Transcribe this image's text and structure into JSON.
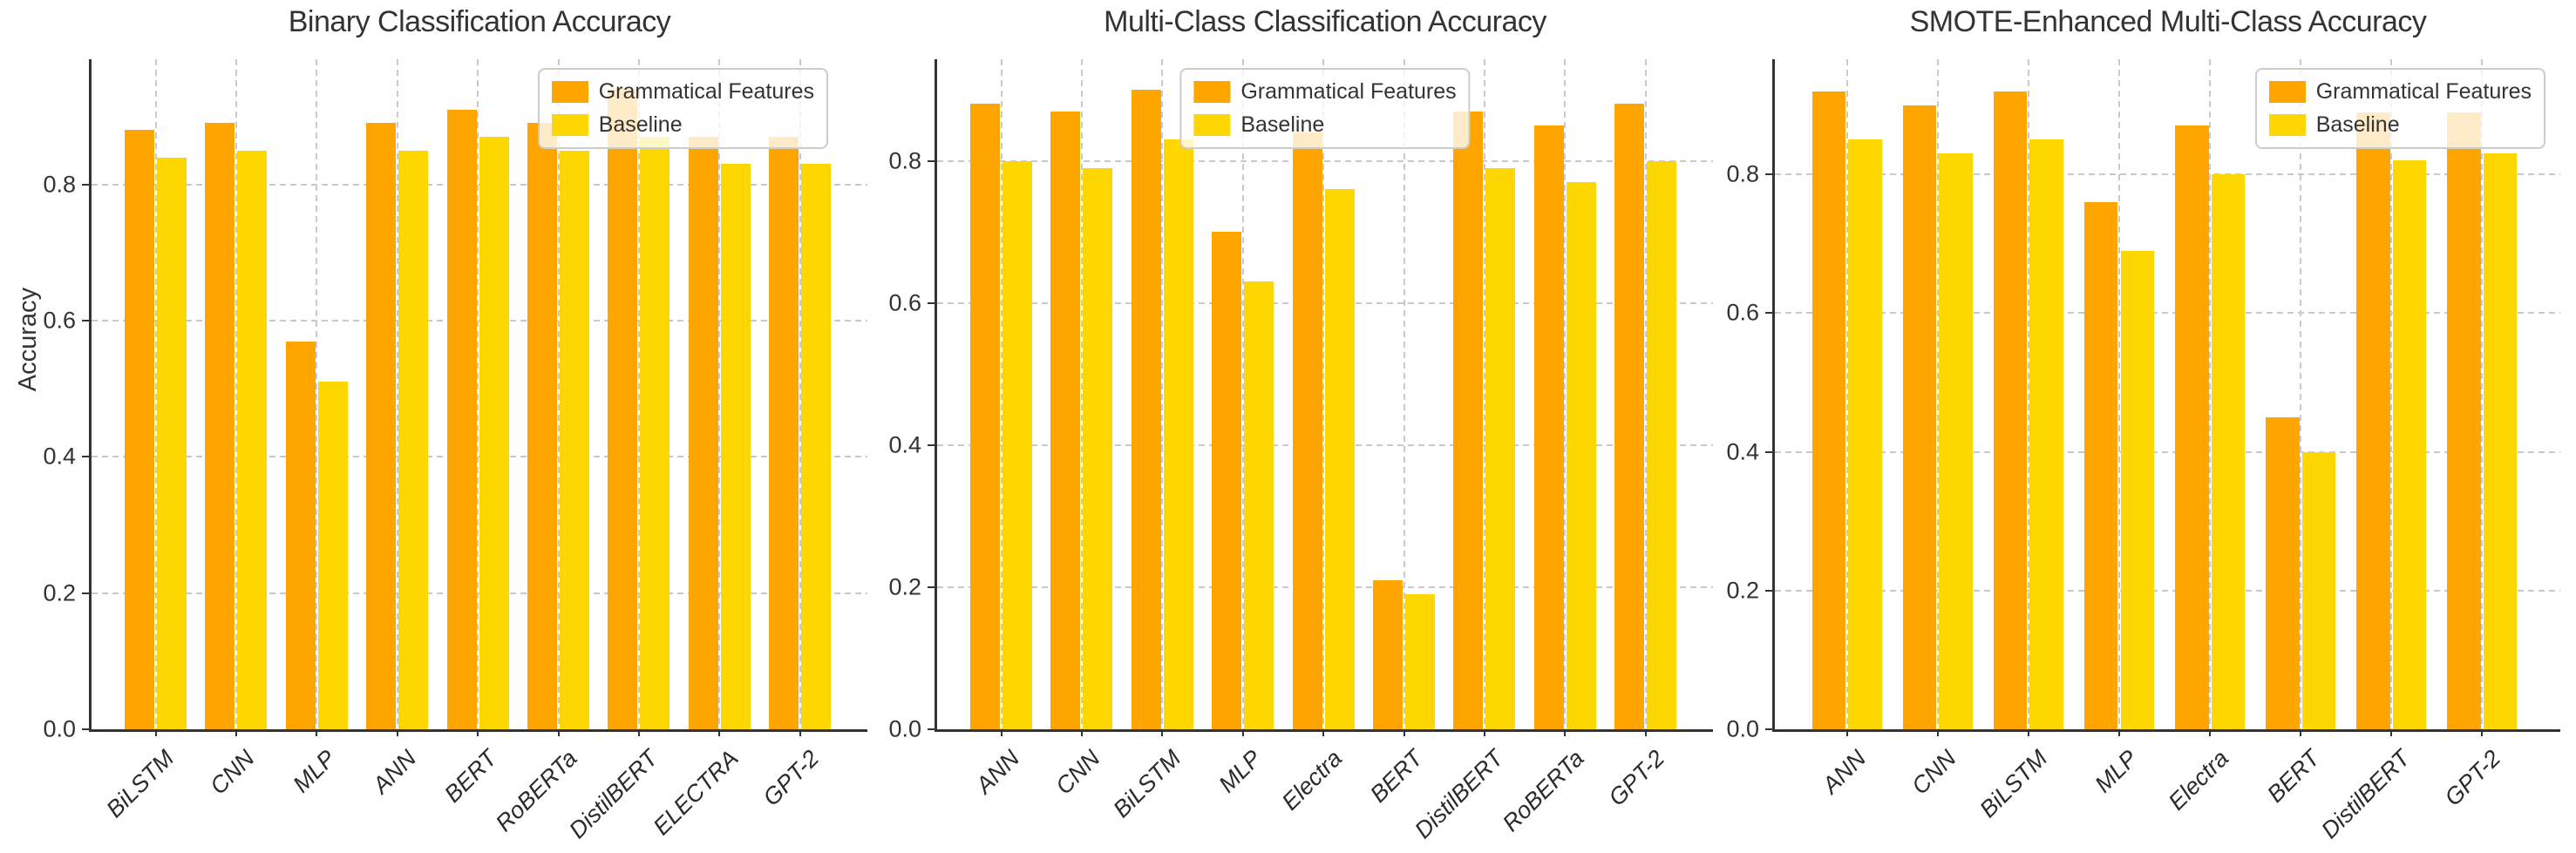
{
  "figure": {
    "background": "#ffffff",
    "ylabel": "Accuracy",
    "ytick_labels": [
      "0.0",
      "0.2",
      "0.4",
      "0.6",
      "0.8"
    ]
  },
  "colors": {
    "grammatical_features": "#FFA500",
    "baseline": "#FFD700",
    "grid": "#c9c9c9",
    "axis": "#333333",
    "text": "#333333"
  },
  "legend": {
    "items": [
      {
        "label": "Grammatical Features",
        "color_key": "grammatical_features"
      },
      {
        "label": "Baseline",
        "color_key": "baseline"
      }
    ]
  },
  "chart_data": [
    {
      "type": "bar",
      "title": "Binary Classification Accuracy",
      "ylabel": "Accuracy",
      "categories": [
        "BiLSTM",
        "CNN",
        "MLP",
        "ANN",
        "BERT",
        "RoBERTa",
        "DistilBERT",
        "ELECTRA",
        "GPT-2"
      ],
      "series": [
        {
          "name": "Grammatical Features",
          "color": "#FFA500",
          "values": [
            0.88,
            0.89,
            0.57,
            0.89,
            0.91,
            0.89,
            0.94,
            0.87,
            0.87
          ]
        },
        {
          "name": "Baseline",
          "color": "#FFD700",
          "values": [
            0.84,
            0.85,
            0.51,
            0.85,
            0.87,
            0.85,
            0.87,
            0.83,
            0.83
          ]
        }
      ],
      "yticks": [
        0.0,
        0.2,
        0.4,
        0.6,
        0.8
      ],
      "ylim": [
        0,
        0.984
      ],
      "grid": "dashed",
      "legend_position": "upper-right"
    },
    {
      "type": "bar",
      "title": "Multi-Class Classification Accuracy",
      "ylabel": "",
      "categories": [
        "ANN",
        "CNN",
        "BiLSTM",
        "MLP",
        "Electra",
        "BERT",
        "DistilBERT",
        "RoBERTa",
        "GPT-2"
      ],
      "series": [
        {
          "name": "Grammatical Features",
          "color": "#FFA500",
          "values": [
            0.88,
            0.87,
            0.9,
            0.7,
            0.84,
            0.21,
            0.87,
            0.85,
            0.88
          ]
        },
        {
          "name": "Baseline",
          "color": "#FFD700",
          "values": [
            0.8,
            0.79,
            0.83,
            0.63,
            0.76,
            0.19,
            0.79,
            0.77,
            0.8
          ]
        }
      ],
      "yticks": [
        0.0,
        0.2,
        0.4,
        0.6,
        0.8
      ],
      "ylim": [
        0,
        0.943
      ],
      "grid": "dashed",
      "legend_position": "upper-center"
    },
    {
      "type": "bar",
      "title": "SMOTE-Enhanced Multi-Class Accuracy",
      "ylabel": "",
      "categories": [
        "ANN",
        "CNN",
        "BiLSTM",
        "MLP",
        "Electra",
        "BERT",
        "DistilBERT",
        "GPT-2"
      ],
      "series": [
        {
          "name": "Grammatical Features",
          "color": "#FFA500",
          "values": [
            0.92,
            0.9,
            0.92,
            0.76,
            0.87,
            0.45,
            0.89,
            0.89
          ]
        },
        {
          "name": "Baseline",
          "color": "#FFD700",
          "values": [
            0.85,
            0.83,
            0.85,
            0.69,
            0.8,
            0.4,
            0.82,
            0.83
          ]
        }
      ],
      "yticks": [
        0.0,
        0.2,
        0.4,
        0.6,
        0.8
      ],
      "ylim": [
        0,
        0.966
      ],
      "grid": "dashed",
      "legend_position": "upper-right"
    }
  ]
}
